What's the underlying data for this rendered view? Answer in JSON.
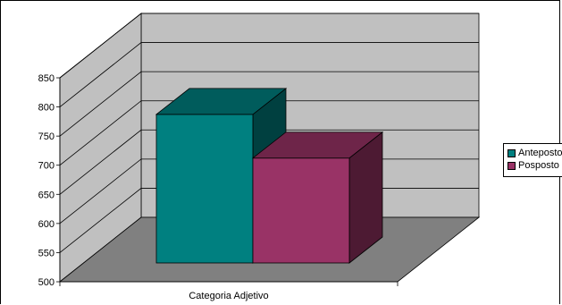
{
  "chart_data": {
    "type": "bar",
    "categories": [
      "Categoria Adjetivo"
    ],
    "series": [
      {
        "name": "Anteposto",
        "values": [
          755
        ],
        "color": "#008080"
      },
      {
        "name": "Posposto",
        "values": [
          680
        ],
        "color": "#993366"
      }
    ],
    "ylim": [
      500,
      850
    ],
    "yticks": [
      500,
      550,
      600,
      650,
      700,
      750,
      800,
      850
    ],
    "grid": true,
    "three_d": true,
    "legend_position": "right",
    "title": "",
    "xlabel": "",
    "ylabel": ""
  }
}
